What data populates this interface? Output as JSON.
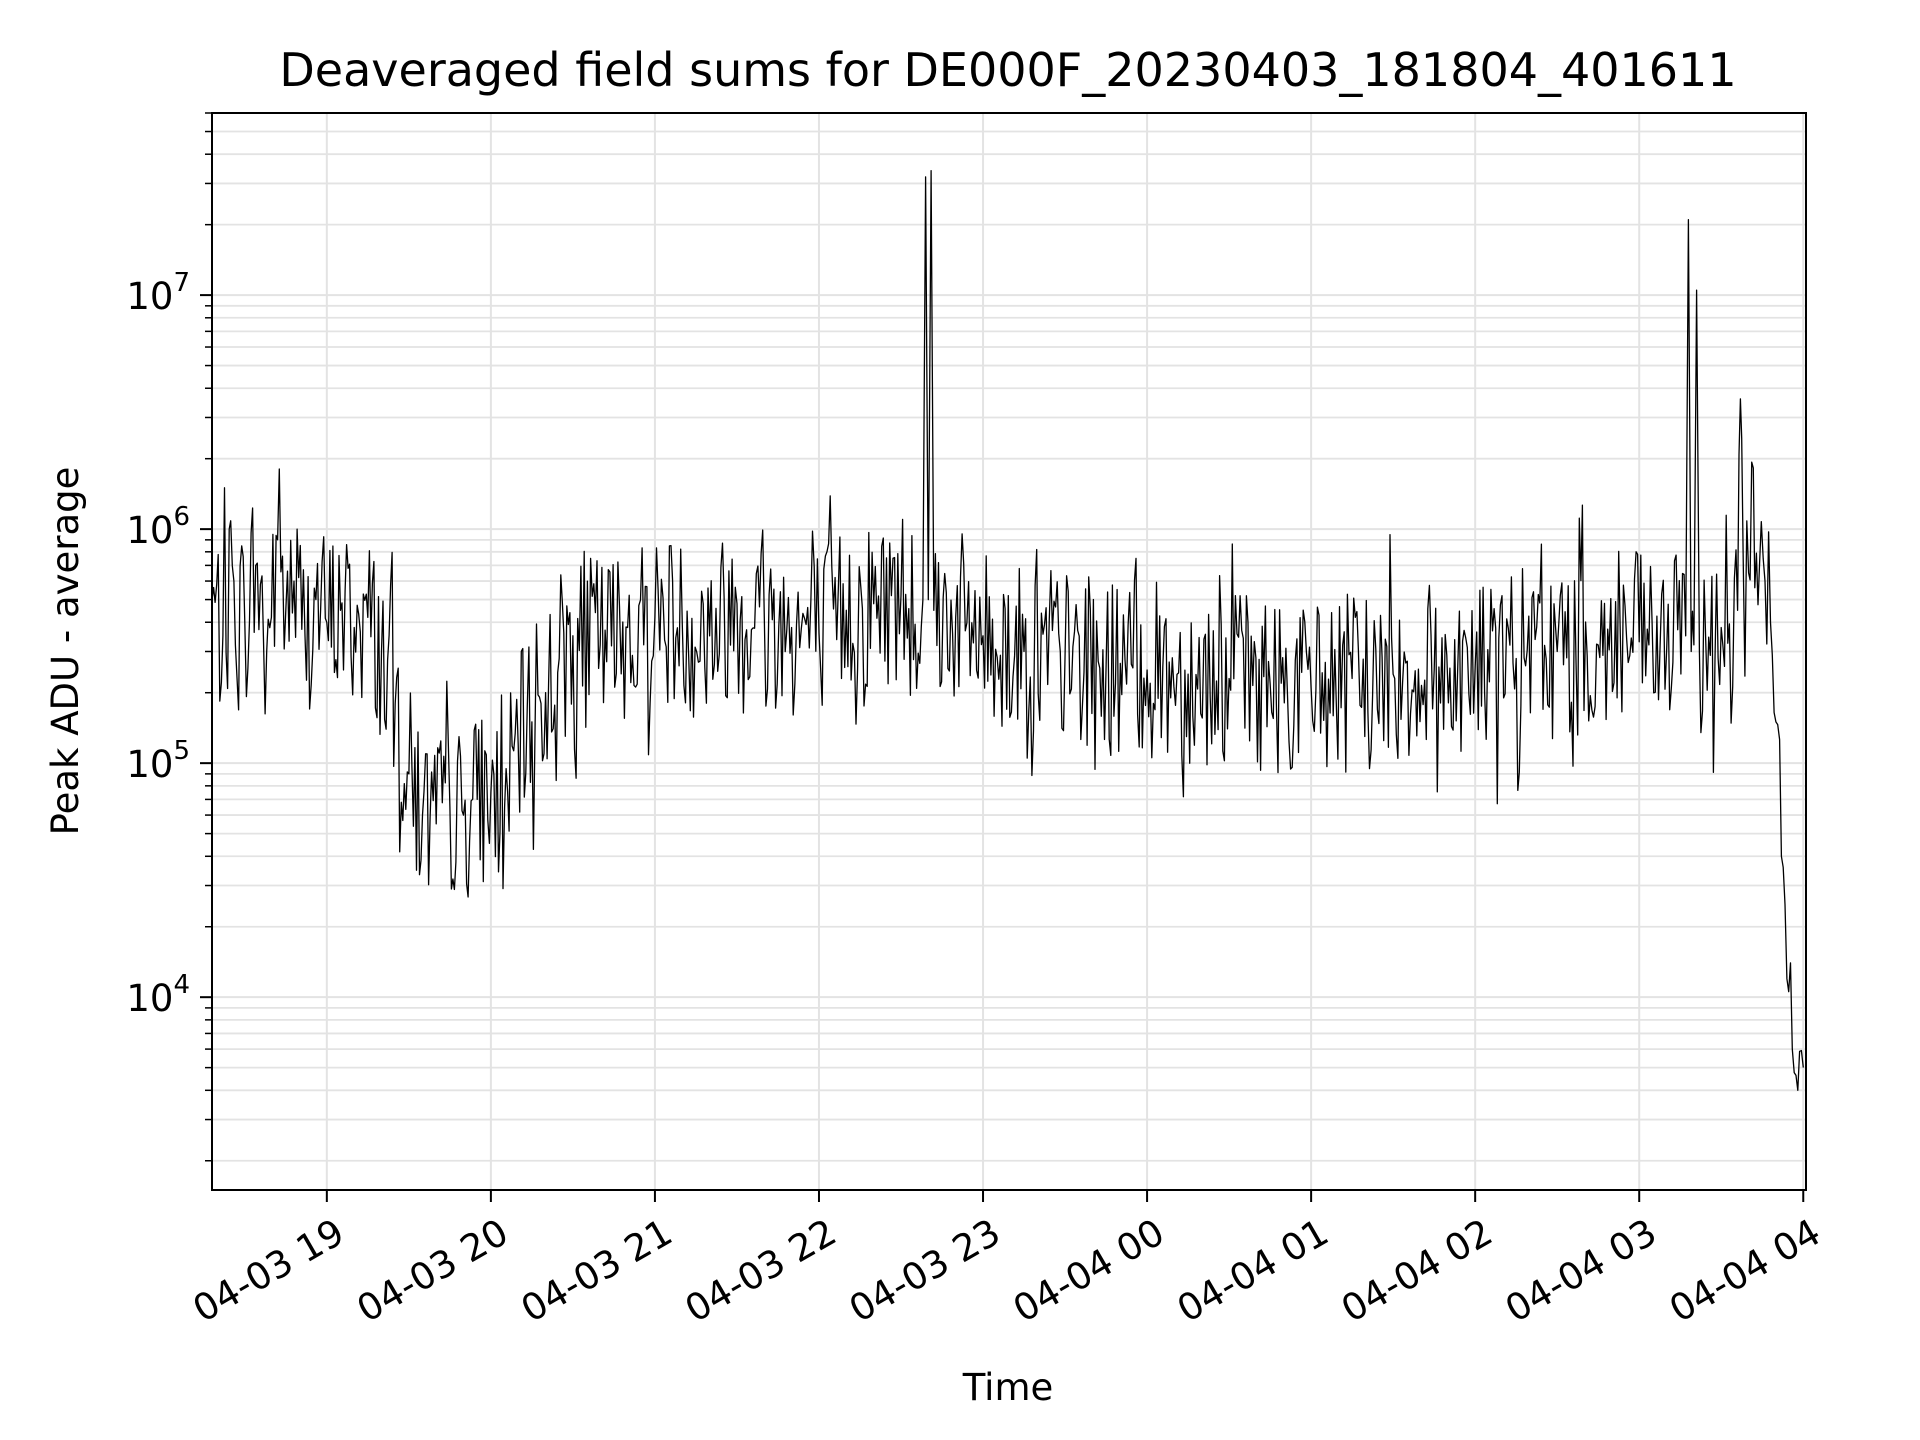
{
  "chart_data": {
    "type": "line",
    "title": "Deaveraged field sums for DE000F_20230403_181804_401611",
    "xlabel": "Time",
    "ylabel": "Peak ADU - average",
    "yscale": "log",
    "ylim": [
      1500,
      60000000
    ],
    "xlim": [
      "2023-04-03 18:18",
      "2023-04-04 04:01"
    ],
    "grid": true,
    "line_color": "#000000",
    "grid_color": "#e3e3e3",
    "x_ticks": [
      {
        "label": "04-03 19",
        "time": "2023-04-03 19:00"
      },
      {
        "label": "04-03 20",
        "time": "2023-04-03 20:00"
      },
      {
        "label": "04-03 21",
        "time": "2023-04-03 21:00"
      },
      {
        "label": "04-03 22",
        "time": "2023-04-03 22:00"
      },
      {
        "label": "04-03 23",
        "time": "2023-04-03 23:00"
      },
      {
        "label": "04-04 00",
        "time": "2023-04-04 00:00"
      },
      {
        "label": "04-04 01",
        "time": "2023-04-04 01:00"
      },
      {
        "label": "04-04 02",
        "time": "2023-04-04 02:00"
      },
      {
        "label": "04-04 03",
        "time": "2023-04-04 03:00"
      },
      {
        "label": "04-04 04",
        "time": "2023-04-04 04:00"
      }
    ],
    "y_ticks": [
      {
        "base": "10",
        "exp": "4",
        "value": 10000
      },
      {
        "base": "10",
        "exp": "5",
        "value": 100000
      },
      {
        "base": "10",
        "exp": "6",
        "value": 1000000
      },
      {
        "base": "10",
        "exp": "7",
        "value": 10000000
      }
    ],
    "series": [
      {
        "x": [
          "2023-04-03 18:18",
          "2023-04-03 18:22",
          "2023-04-03 18:26",
          "2023-04-03 18:30",
          "2023-04-03 18:34",
          "2023-04-03 18:38",
          "2023-04-03 18:42",
          "2023-04-03 18:45",
          "2023-04-03 18:48",
          "2023-04-03 18:52",
          "2023-04-03 18:56",
          "2023-04-03 19:00",
          "2023-04-03 19:05",
          "2023-04-03 19:10",
          "2023-04-03 19:15",
          "2023-04-03 19:20",
          "2023-04-03 19:25",
          "2023-04-03 19:30",
          "2023-04-03 19:35",
          "2023-04-03 19:40",
          "2023-04-03 19:45",
          "2023-04-03 19:50",
          "2023-04-03 19:55",
          "2023-04-03 20:00",
          "2023-04-03 20:05",
          "2023-04-03 20:10",
          "2023-04-03 20:15",
          "2023-04-03 20:20",
          "2023-04-03 20:25",
          "2023-04-03 20:30",
          "2023-04-03 20:40",
          "2023-04-03 20:50",
          "2023-04-03 21:00",
          "2023-04-03 21:10",
          "2023-04-03 21:20",
          "2023-04-03 21:30",
          "2023-04-03 21:40",
          "2023-04-03 21:50",
          "2023-04-03 22:00",
          "2023-04-03 22:10",
          "2023-04-03 22:20",
          "2023-04-03 22:30",
          "2023-04-03 22:38",
          "2023-04-03 22:39",
          "2023-04-03 22:40",
          "2023-04-03 22:41",
          "2023-04-03 22:42",
          "2023-04-03 22:50",
          "2023-04-03 23:00",
          "2023-04-03 23:15",
          "2023-04-03 23:30",
          "2023-04-03 23:45",
          "2023-04-04 00:00",
          "2023-04-04 00:15",
          "2023-04-04 00:30",
          "2023-04-04 00:45",
          "2023-04-04 01:00",
          "2023-04-04 01:15",
          "2023-04-04 01:30",
          "2023-04-04 01:45",
          "2023-04-04 02:00",
          "2023-04-04 02:15",
          "2023-04-04 02:30",
          "2023-04-04 02:45",
          "2023-04-04 03:00",
          "2023-04-04 03:10",
          "2023-04-04 03:17",
          "2023-04-04 03:18",
          "2023-04-04 03:19",
          "2023-04-04 03:20",
          "2023-04-04 03:21",
          "2023-04-04 03:22",
          "2023-04-04 03:30",
          "2023-04-04 03:36",
          "2023-04-04 03:37",
          "2023-04-04 03:38",
          "2023-04-04 03:40",
          "2023-04-04 03:44",
          "2023-04-04 03:46",
          "2023-04-04 03:48",
          "2023-04-04 03:50",
          "2023-04-04 03:52",
          "2023-04-04 03:54",
          "2023-04-04 03:56",
          "2023-04-04 03:58",
          "2023-04-04 04:00"
        ],
        "y": [
          500000,
          350000,
          600000,
          400000,
          700000,
          300000,
          900000,
          450000,
          600000,
          350000,
          500000,
          400000,
          450000,
          380000,
          420000,
          300000,
          180000,
          90000,
          60000,
          55000,
          65000,
          60000,
          70000,
          75000,
          65000,
          120000,
          150000,
          200000,
          280000,
          350000,
          320000,
          380000,
          420000,
          390000,
          350000,
          480000,
          420000,
          380000,
          360000,
          450000,
          480000,
          520000,
          500000,
          32000000,
          500000,
          34000000,
          450000,
          420000,
          350000,
          300000,
          280000,
          260000,
          250000,
          240000,
          230000,
          220000,
          210000,
          230000,
          240000,
          250000,
          260000,
          280000,
          300000,
          320000,
          330000,
          300000,
          350000,
          21000000,
          300000,
          320000,
          10500000,
          300000,
          380000,
          450000,
          3600000,
          800000,
          650000,
          700000,
          600000,
          400000,
          150000,
          40000,
          12000,
          6000,
          4000,
          5000
        ]
      }
    ]
  }
}
